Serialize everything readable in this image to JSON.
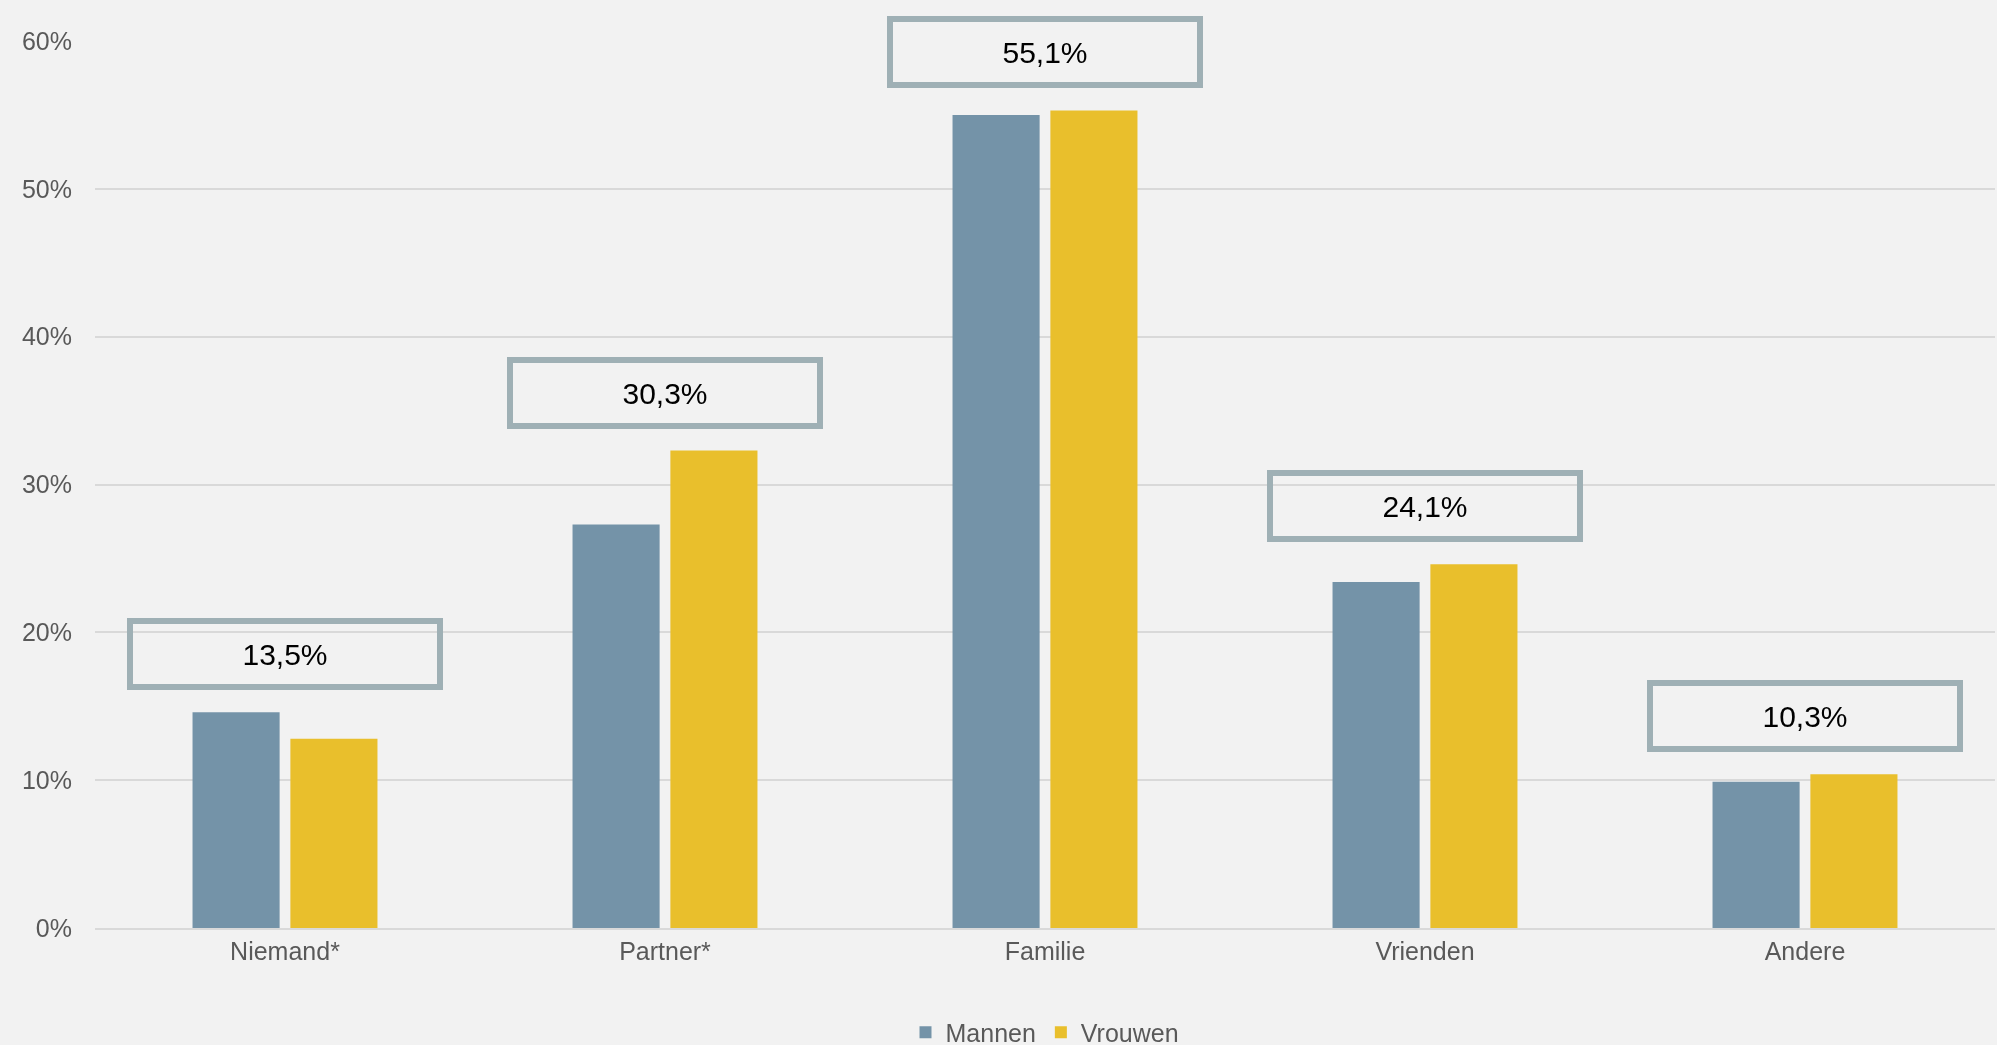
{
  "chart_data": {
    "type": "bar",
    "categories": [
      "Niemand*",
      "Partner*",
      "Familie",
      "Vrienden",
      "Andere"
    ],
    "series": [
      {
        "name": "Mannen",
        "color": "#7493a8",
        "values": [
          14.6,
          27.3,
          55.0,
          23.4,
          9.9
        ]
      },
      {
        "name": "Vrouwen",
        "color": "#e9bf2c",
        "values": [
          12.8,
          32.3,
          55.3,
          24.6,
          10.4
        ]
      }
    ],
    "ylim": [
      0,
      60
    ],
    "yticks": [
      {
        "value": 0,
        "label": "0%"
      },
      {
        "value": 10,
        "label": "10%"
      },
      {
        "value": 20,
        "label": "20%"
      },
      {
        "value": 30,
        "label": "30%"
      },
      {
        "value": 40,
        "label": "40%"
      },
      {
        "value": 50,
        "label": "50%"
      },
      {
        "value": 60,
        "label": "60%"
      }
    ],
    "grid": "y",
    "legend": "bottom",
    "annotations": [
      "13,5%",
      "30,3%",
      "55,1%",
      "24,1%",
      "10,3%"
    ]
  }
}
